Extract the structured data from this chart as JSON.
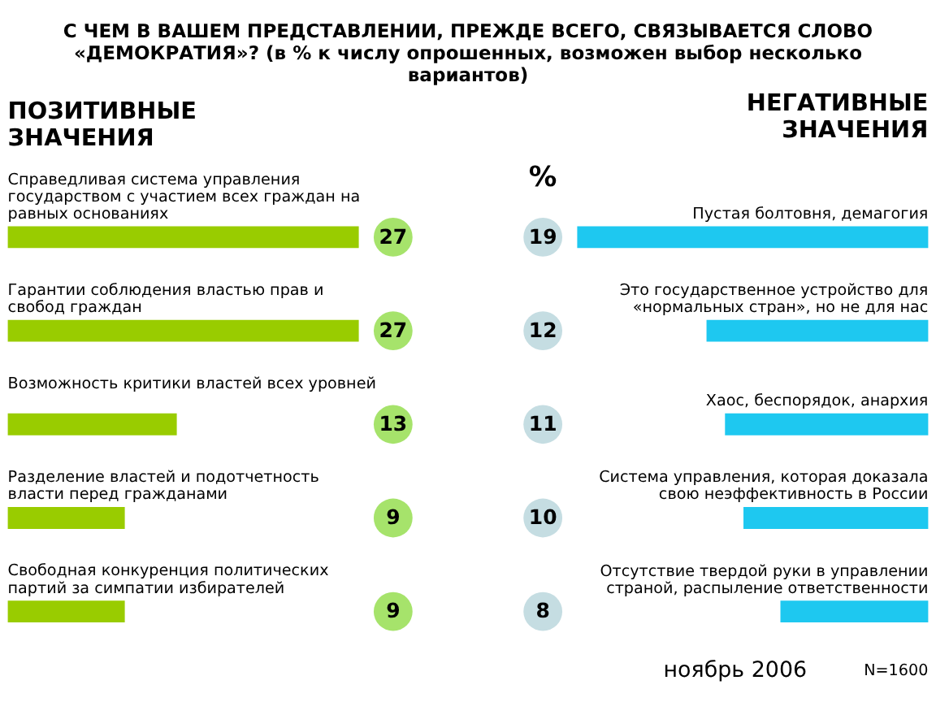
{
  "chart_data": [
    {
      "type": "bar",
      "orientation": "horizontal",
      "title": "ПОЗИТИВНЫЕ ЗНАЧЕНИЯ",
      "categories": [
        "Справедливая система управления государством с участием всех граждан на равных основаниях",
        "Гарантии соблюдения властью прав и свобод граждан",
        "Возможность критики властей всех уровней",
        "Разделение властей и подотчетность власти перед гражданами",
        "Свободная конкуренция  политических партий за симпатии избирателей"
      ],
      "values": [
        27,
        27,
        13,
        9,
        9
      ],
      "colors": [
        "#99cc00",
        "#99cc00",
        "#99cc00",
        "#99cc00",
        "#99cc00"
      ],
      "data_labels": true,
      "tick_labels": false,
      "annotations": [
        "С ЧЕМ В ВАШЕМ ПРЕДСТАВЛЕНИИ, ПРЕЖДЕ ВСЕГО, СВЯЗЫВАЕТСЯ СЛОВО «ДЕМОКРАТИЯ»? (в % к числу опрошенных, возможен выбор несколько вариантов)"
      ]
    },
    {
      "type": "bar",
      "orientation": "horizontal",
      "title": "НЕГАТИВНЫЕ ЗНАЧЕНИЯ",
      "categories": [
        "Пустая болтовня, демагогия",
        "Это государственное устройство для «нормальных стран», но не для нас",
        "Хаос, беспорядок, анархия",
        "Система управления, которая доказала свою неэффективность в России",
        "Отсутствие твердой руки в управлении страной, распыление ответственности"
      ],
      "values": [
        19,
        12,
        11,
        10,
        8
      ],
      "colors": [
        "#1ec8f0",
        "#1ec8f0",
        "#1ec8f0",
        "#1ec8f0",
        "#1ec8f0"
      ],
      "data_labels": true,
      "tick_labels": false,
      "annotations": [
        "%",
        "ноябрь 2006",
        "N=1600"
      ]
    }
  ]
}
